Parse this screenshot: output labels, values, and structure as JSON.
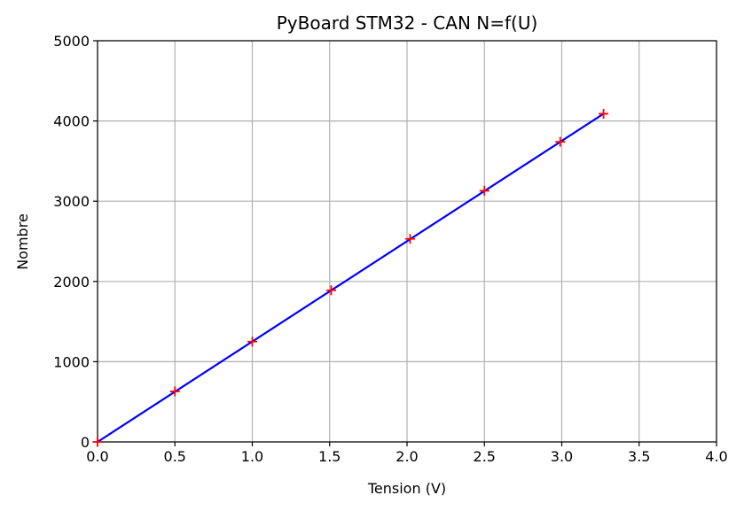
{
  "chart_data": {
    "type": "line",
    "title": "PyBoard STM32 - CAN N=f(U)",
    "xlabel": "Tension (V)",
    "ylabel": "Nombre",
    "xlim": [
      0.0,
      4.0
    ],
    "ylim": [
      0,
      5000
    ],
    "xticks": [
      "0.0",
      "0.5",
      "1.0",
      "1.5",
      "2.0",
      "2.5",
      "3.0",
      "3.5",
      "4.0"
    ],
    "yticks": [
      "0",
      "1000",
      "2000",
      "3000",
      "4000",
      "5000"
    ],
    "grid": true,
    "legend": "none",
    "series": [
      {
        "style": "line",
        "color": "#0000ff",
        "x": [
          0.0,
          3.27
        ],
        "y": [
          0,
          4090
        ]
      },
      {
        "style": "marker",
        "marker": "plus",
        "color": "#ff0000",
        "x": [
          0.0,
          0.5,
          1.0,
          1.51,
          2.02,
          2.5,
          2.99,
          3.27
        ],
        "y": [
          0,
          630,
          1250,
          1890,
          2530,
          3130,
          3740,
          4090
        ]
      }
    ]
  }
}
